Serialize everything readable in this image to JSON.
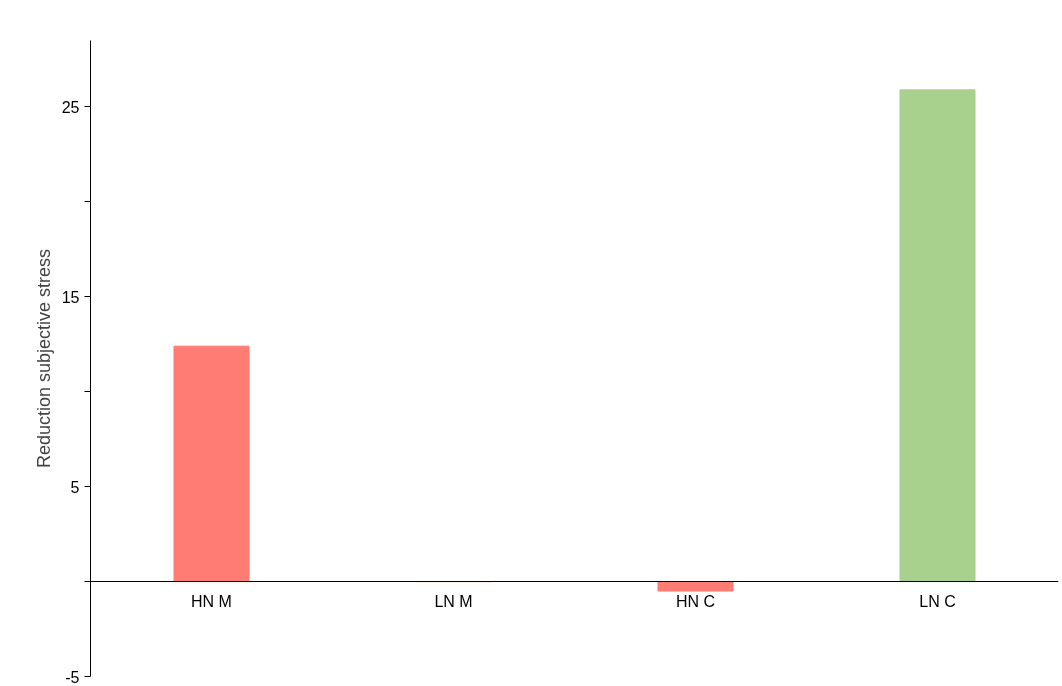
{
  "chart_data": {
    "type": "bar",
    "ylabel": "Reduction subjective stress",
    "categories": [
      "HN M",
      "LN M",
      "HN C",
      "LN C"
    ],
    "values": [
      12.4,
      0,
      -0.5,
      25.9
    ],
    "colors": [
      "#ff7c75",
      "#ff7c75",
      "#ff7c75",
      "#a9d18e"
    ],
    "ylim": [
      -5,
      28.5
    ],
    "yticks": [
      -5,
      {
        "value": 0,
        "label": null
      },
      5,
      {
        "value": 10,
        "label": null
      },
      15,
      {
        "value": 20,
        "label": null
      },
      25
    ],
    "grid": false
  }
}
